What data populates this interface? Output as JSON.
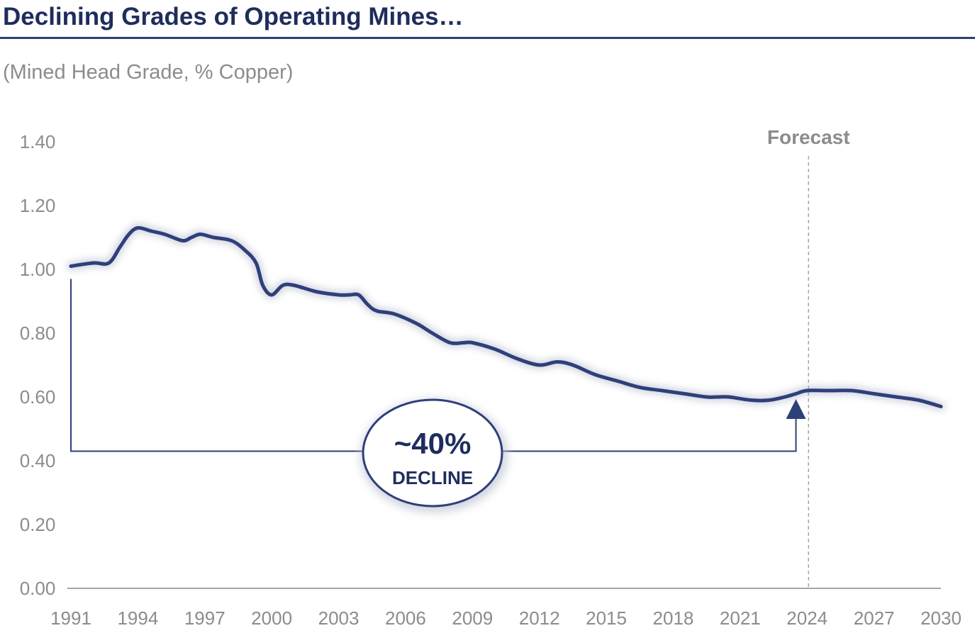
{
  "header": {
    "title": "Declining Grades of Operating Mines…",
    "subtitle": "(Mined Head Grade, % Copper)"
  },
  "colors": {
    "series": "#2f3f7a",
    "axis": "#a6a6a6",
    "text_gray": "#8c8c8c",
    "title": "#1f2d5c"
  },
  "annotations": {
    "forecast_label": "Forecast",
    "forecast_year": 2024,
    "callout_value": "~40%",
    "callout_text": "DECLINE",
    "bracket_start_year": 1991,
    "bracket_start_value": 0.97,
    "bracket_base_value": 0.43,
    "bracket_end_year": 2023.5,
    "bracket_end_value": 0.58
  },
  "chart_data": {
    "type": "line",
    "title": "Declining Grades of Operating Mines…",
    "subtitle": "(Mined Head Grade, % Copper)",
    "xlabel": "",
    "ylabel": "",
    "xlim": [
      1991,
      2030
    ],
    "ylim": [
      0,
      1.4
    ],
    "x_ticks": [
      1991,
      1994,
      1997,
      2000,
      2003,
      2006,
      2009,
      2012,
      2015,
      2018,
      2021,
      2024,
      2027,
      2030
    ],
    "y_ticks": [
      "0.00",
      "0.20",
      "0.40",
      "0.60",
      "0.80",
      "1.00",
      "1.20",
      "1.40"
    ],
    "grid": false,
    "series": [
      {
        "x": [
          1991,
          1992,
          1992.7,
          1993.2,
          1993.6,
          1994,
          1994.6,
          1995.2,
          1996,
          1996.4,
          1996.8,
          1997.4,
          1998.2,
          1998.8,
          1999.3,
          1999.6,
          2000,
          2000.5,
          2001,
          2002,
          2003,
          2003.5,
          2003.9,
          2004.3,
          2004.7,
          2005.5,
          2006.5,
          2007.2,
          2008,
          2008.6,
          2009,
          2010,
          2011,
          2012,
          2012.8,
          2013.5,
          2014.5,
          2015.5,
          2016.5,
          2017.5,
          2018.5,
          2019.5,
          2020,
          2020.5,
          2021.5,
          2022.3,
          2023,
          2023.5,
          2024,
          2025,
          2026,
          2027,
          2028,
          2029,
          2030
        ],
        "y": [
          1.01,
          1.02,
          1.02,
          1.07,
          1.11,
          1.13,
          1.12,
          1.11,
          1.09,
          1.1,
          1.11,
          1.1,
          1.09,
          1.06,
          1.02,
          0.95,
          0.92,
          0.95,
          0.95,
          0.93,
          0.92,
          0.92,
          0.92,
          0.89,
          0.87,
          0.86,
          0.83,
          0.8,
          0.77,
          0.77,
          0.77,
          0.75,
          0.72,
          0.7,
          0.71,
          0.7,
          0.67,
          0.65,
          0.63,
          0.62,
          0.61,
          0.6,
          0.6,
          0.6,
          0.59,
          0.59,
          0.6,
          0.61,
          0.62,
          0.62,
          0.62,
          0.61,
          0.6,
          0.59,
          0.57
        ]
      }
    ]
  }
}
